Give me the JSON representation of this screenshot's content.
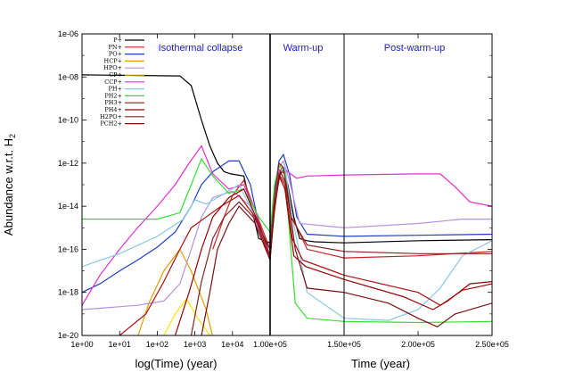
{
  "chart_data": {
    "type": "line",
    "ylabel": "Abundance w.r.t. H",
    "ylabel_sub": "2",
    "y_scale": "log",
    "ylim": [
      1e-20,
      1e-06
    ],
    "y_ticks": [
      "1e-06",
      "1e-08",
      "1e-10",
      "1e-12",
      "1e-14",
      "1e-16",
      "1e-18",
      "1e-20"
    ],
    "panels": [
      {
        "xlabel": "log(Time) (year)",
        "x_scale": "log",
        "xlim": [
          1,
          100000
        ],
        "x_ticks": [
          "1e+00",
          "1e+01",
          "1e+02",
          "1e+03",
          "1e+04"
        ],
        "annotations": [
          "Isothermal collapse"
        ]
      },
      {
        "xlabel": "Time (year)",
        "x_scale": "linear",
        "xlim": [
          100000,
          250000
        ],
        "x_ticks": [
          "1.00e+05",
          "1.50e+05",
          "2.00e+05",
          "2.50e+05"
        ],
        "annotations": [
          "Warm-up",
          "Post-warm-up"
        ],
        "phase_boundary": 150000
      }
    ],
    "legend_position": "top-left",
    "series": [
      {
        "name": "P+",
        "color": "#000000",
        "left": [
          [
            1,
            -7.9
          ],
          [
            400,
            -7.95
          ],
          [
            800,
            -8.4
          ],
          [
            1500,
            -10.0
          ],
          [
            2500,
            -11.2
          ],
          [
            4000,
            -12.0
          ],
          [
            6000,
            -12.4
          ],
          [
            9000,
            -12.5
          ],
          [
            20000,
            -12.6
          ],
          [
            50000,
            -15.5
          ],
          [
            100000,
            -15.7
          ]
        ],
        "right": [
          [
            100000,
            -15.3
          ],
          [
            103000,
            -13.5
          ],
          [
            106000,
            -12.6
          ],
          [
            109000,
            -12.3
          ],
          [
            112000,
            -13.0
          ],
          [
            116000,
            -14.5
          ],
          [
            120000,
            -15.5
          ],
          [
            125000,
            -15.6
          ],
          [
            130000,
            -15.65
          ],
          [
            150000,
            -15.7
          ],
          [
            200000,
            -15.6
          ],
          [
            250000,
            -15.55
          ]
        ]
      },
      {
        "name": "PN+",
        "color": "#cc2222",
        "left": [
          [
            3000,
            -16.0
          ],
          [
            6000,
            -14.5
          ],
          [
            10000,
            -13.5
          ],
          [
            20000,
            -12.8
          ],
          [
            40000,
            -14.2
          ],
          [
            100000,
            -16.0
          ]
        ],
        "right": [
          [
            100000,
            -16.0
          ],
          [
            103000,
            -13.8
          ],
          [
            106000,
            -12.3
          ],
          [
            110000,
            -12.5
          ],
          [
            115000,
            -14.5
          ],
          [
            125000,
            -16.0
          ],
          [
            150000,
            -16.4
          ],
          [
            200000,
            -16.3
          ],
          [
            250000,
            -16.1
          ]
        ]
      },
      {
        "name": "PO+",
        "color": "#1f3fbf",
        "left": [
          [
            1,
            -18.0
          ],
          [
            3,
            -17.6
          ],
          [
            10,
            -17.0
          ],
          [
            30,
            -16.5
          ],
          [
            100,
            -15.9
          ],
          [
            300,
            -15.2
          ],
          [
            800,
            -14.0
          ],
          [
            1500,
            -13.0
          ],
          [
            3000,
            -12.4
          ],
          [
            8000,
            -11.9
          ],
          [
            15000,
            -11.9
          ],
          [
            30000,
            -13.0
          ],
          [
            60000,
            -15.5
          ],
          [
            100000,
            -15.9
          ]
        ],
        "right": [
          [
            100000,
            -15.7
          ],
          [
            103000,
            -13.3
          ],
          [
            106000,
            -11.9
          ],
          [
            109000,
            -11.6
          ],
          [
            113000,
            -12.5
          ],
          [
            118000,
            -14.5
          ],
          [
            125000,
            -15.3
          ],
          [
            150000,
            -15.4
          ],
          [
            200000,
            -15.35
          ],
          [
            250000,
            -15.3
          ]
        ]
      },
      {
        "name": "HCP+",
        "color": "#e0a000",
        "left": [
          [
            1,
            -22
          ],
          [
            20,
            -21
          ],
          [
            60,
            -18.5
          ],
          [
            150,
            -17.0
          ],
          [
            400,
            -16.0
          ],
          [
            800,
            -17.0
          ],
          [
            2000,
            -18.8
          ],
          [
            4000,
            -21
          ]
        ],
        "right": []
      },
      {
        "name": "HPO+",
        "color": "#b890e0",
        "left": [
          [
            1,
            -18.8
          ],
          [
            30,
            -18.6
          ],
          [
            150,
            -18.4
          ],
          [
            400,
            -17.6
          ],
          [
            800,
            -16.0
          ],
          [
            1500,
            -14.5
          ],
          [
            3000,
            -13.6
          ],
          [
            10000,
            -13.3
          ],
          [
            30000,
            -14.0
          ],
          [
            60000,
            -15.5
          ],
          [
            100000,
            -16.0
          ]
        ],
        "right": [
          [
            100000,
            -15.8
          ],
          [
            103000,
            -13.6
          ],
          [
            106000,
            -12.2
          ],
          [
            109000,
            -11.9
          ],
          [
            113000,
            -12.8
          ],
          [
            120000,
            -14.8
          ],
          [
            150000,
            -15.0
          ],
          [
            200000,
            -14.8
          ],
          [
            230000,
            -14.6
          ],
          [
            250000,
            -14.6
          ]
        ]
      },
      {
        "name": "CP+",
        "color": "#ffe000",
        "left": [
          [
            150,
            -20
          ],
          [
            300,
            -19.0
          ],
          [
            600,
            -18.3
          ],
          [
            1200,
            -19.2
          ],
          [
            2500,
            -20
          ]
        ],
        "right": []
      },
      {
        "name": "CCP+",
        "color": "#e030d0",
        "left": [
          [
            1,
            -18.6
          ],
          [
            3,
            -17.2
          ],
          [
            10,
            -16.0
          ],
          [
            30,
            -15.0
          ],
          [
            100,
            -14.0
          ],
          [
            300,
            -13.0
          ],
          [
            700,
            -12.0
          ],
          [
            1500,
            -11.2
          ],
          [
            3000,
            -12.5
          ],
          [
            8000,
            -13.2
          ],
          [
            20000,
            -13.0
          ],
          [
            40000,
            -14.2
          ],
          [
            70000,
            -15.5
          ],
          [
            100000,
            -16.5
          ]
        ],
        "right": [
          [
            100000,
            -16.5
          ],
          [
            102000,
            -14.0
          ],
          [
            105000,
            -12.6
          ],
          [
            108000,
            -12.2
          ],
          [
            112000,
            -12.4
          ],
          [
            118000,
            -12.7
          ],
          [
            125000,
            -12.6
          ],
          [
            150000,
            -12.55
          ],
          [
            200000,
            -12.5
          ],
          [
            215000,
            -12.5
          ],
          [
            225000,
            -13.1
          ],
          [
            235000,
            -13.8
          ],
          [
            250000,
            -14.0
          ]
        ]
      },
      {
        "name": "PH+",
        "color": "#87c8e6",
        "left": [
          [
            1,
            -16.8
          ],
          [
            10,
            -16.2
          ],
          [
            100,
            -15.4
          ],
          [
            500,
            -14.6
          ],
          [
            1000,
            -13.7
          ],
          [
            2000,
            -13.9
          ],
          [
            5000,
            -13.5
          ],
          [
            15000,
            -13.0
          ],
          [
            40000,
            -14.5
          ],
          [
            100000,
            -16.3
          ]
        ],
        "right": [
          [
            100000,
            -16.3
          ],
          [
            103000,
            -14.0
          ],
          [
            106000,
            -12.5
          ],
          [
            110000,
            -12.2
          ],
          [
            115000,
            -14.5
          ],
          [
            125000,
            -18.0
          ],
          [
            150000,
            -19.2
          ],
          [
            180000,
            -19.3
          ],
          [
            200000,
            -18.8
          ],
          [
            215000,
            -17.8
          ],
          [
            230000,
            -16.3
          ],
          [
            250000,
            -15.6
          ]
        ]
      },
      {
        "name": "PH2+",
        "color": "#33dd33",
        "left": [
          [
            1,
            -14.6
          ],
          [
            100,
            -14.6
          ],
          [
            400,
            -14.3
          ],
          [
            800,
            -13.0
          ],
          [
            1500,
            -11.8
          ],
          [
            3000,
            -12.6
          ],
          [
            8000,
            -13.4
          ],
          [
            20000,
            -13.2
          ],
          [
            50000,
            -14.5
          ],
          [
            100000,
            -15.2
          ]
        ],
        "right": [
          [
            100000,
            -15.2
          ],
          [
            103000,
            -13.0
          ],
          [
            106000,
            -12.1
          ],
          [
            110000,
            -12.4
          ],
          [
            114000,
            -16.0
          ],
          [
            117000,
            -18.5
          ],
          [
            125000,
            -19.2
          ],
          [
            150000,
            -19.35
          ],
          [
            200000,
            -19.4
          ],
          [
            250000,
            -19.35
          ]
        ]
      },
      {
        "name": "PH3+",
        "color": "#aa1111",
        "left": [
          [
            10,
            -20
          ],
          [
            50,
            -19.0
          ],
          [
            150,
            -17.5
          ],
          [
            400,
            -16.0
          ],
          [
            800,
            -15.0
          ],
          [
            2000,
            -14.5
          ],
          [
            5000,
            -14.0
          ],
          [
            15000,
            -13.5
          ],
          [
            40000,
            -14.5
          ],
          [
            100000,
            -16.5
          ]
        ],
        "right": [
          [
            100000,
            -16.5
          ],
          [
            103000,
            -14.0
          ],
          [
            106000,
            -12.5
          ],
          [
            110000,
            -13.0
          ],
          [
            115000,
            -15.5
          ],
          [
            122000,
            -16.5
          ],
          [
            150000,
            -17.2
          ],
          [
            200000,
            -18.0
          ],
          [
            215000,
            -18.6
          ],
          [
            230000,
            -17.9
          ],
          [
            250000,
            -17.6
          ]
        ]
      },
      {
        "name": "PH4+",
        "color": "#990000",
        "left": [
          [
            300,
            -20
          ],
          [
            700,
            -18.0
          ],
          [
            1500,
            -16.0
          ],
          [
            3000,
            -14.5
          ],
          [
            8000,
            -13.6
          ],
          [
            20000,
            -13.2
          ],
          [
            50000,
            -14.8
          ],
          [
            100000,
            -16.3
          ]
        ],
        "right": [
          [
            100000,
            -16.3
          ],
          [
            103000,
            -14.2
          ],
          [
            106000,
            -12.6
          ],
          [
            110000,
            -13.2
          ],
          [
            116000,
            -16.3
          ],
          [
            124000,
            -16.8
          ],
          [
            150000,
            -17.4
          ],
          [
            190000,
            -18.2
          ],
          [
            210000,
            -18.8
          ],
          [
            220000,
            -18.4
          ],
          [
            235000,
            -17.6
          ],
          [
            250000,
            -17.5
          ]
        ]
      },
      {
        "name": "H2PO+",
        "color": "#882222",
        "left": [
          [
            800,
            -20
          ],
          [
            1500,
            -17.5
          ],
          [
            3000,
            -15.5
          ],
          [
            6000,
            -14.5
          ],
          [
            15000,
            -13.8
          ],
          [
            40000,
            -14.6
          ],
          [
            100000,
            -16.0
          ]
        ],
        "right": [
          [
            100000,
            -16.0
          ],
          [
            103000,
            -13.5
          ],
          [
            106000,
            -12.0
          ],
          [
            109000,
            -12.2
          ],
          [
            114000,
            -14.5
          ],
          [
            125000,
            -15.8
          ],
          [
            150000,
            -16.1
          ],
          [
            200000,
            -16.2
          ],
          [
            250000,
            -16.2
          ]
        ]
      },
      {
        "name": "PCH2+",
        "color": "#7a1010",
        "left": [
          [
            1500,
            -20
          ],
          [
            2500,
            -18.0
          ],
          [
            4000,
            -16.0
          ],
          [
            8000,
            -14.8
          ],
          [
            15000,
            -14.0
          ],
          [
            40000,
            -14.8
          ],
          [
            100000,
            -16.5
          ]
        ],
        "right": [
          [
            100000,
            -16.5
          ],
          [
            103000,
            -14.0
          ],
          [
            107000,
            -12.4
          ],
          [
            111000,
            -13.0
          ],
          [
            117000,
            -16.0
          ],
          [
            125000,
            -17.8
          ],
          [
            150000,
            -18.0
          ],
          [
            180000,
            -18.5
          ],
          [
            200000,
            -19.2
          ],
          [
            213000,
            -19.6
          ],
          [
            225000,
            -19.0
          ],
          [
            250000,
            -18.5
          ]
        ]
      }
    ]
  }
}
